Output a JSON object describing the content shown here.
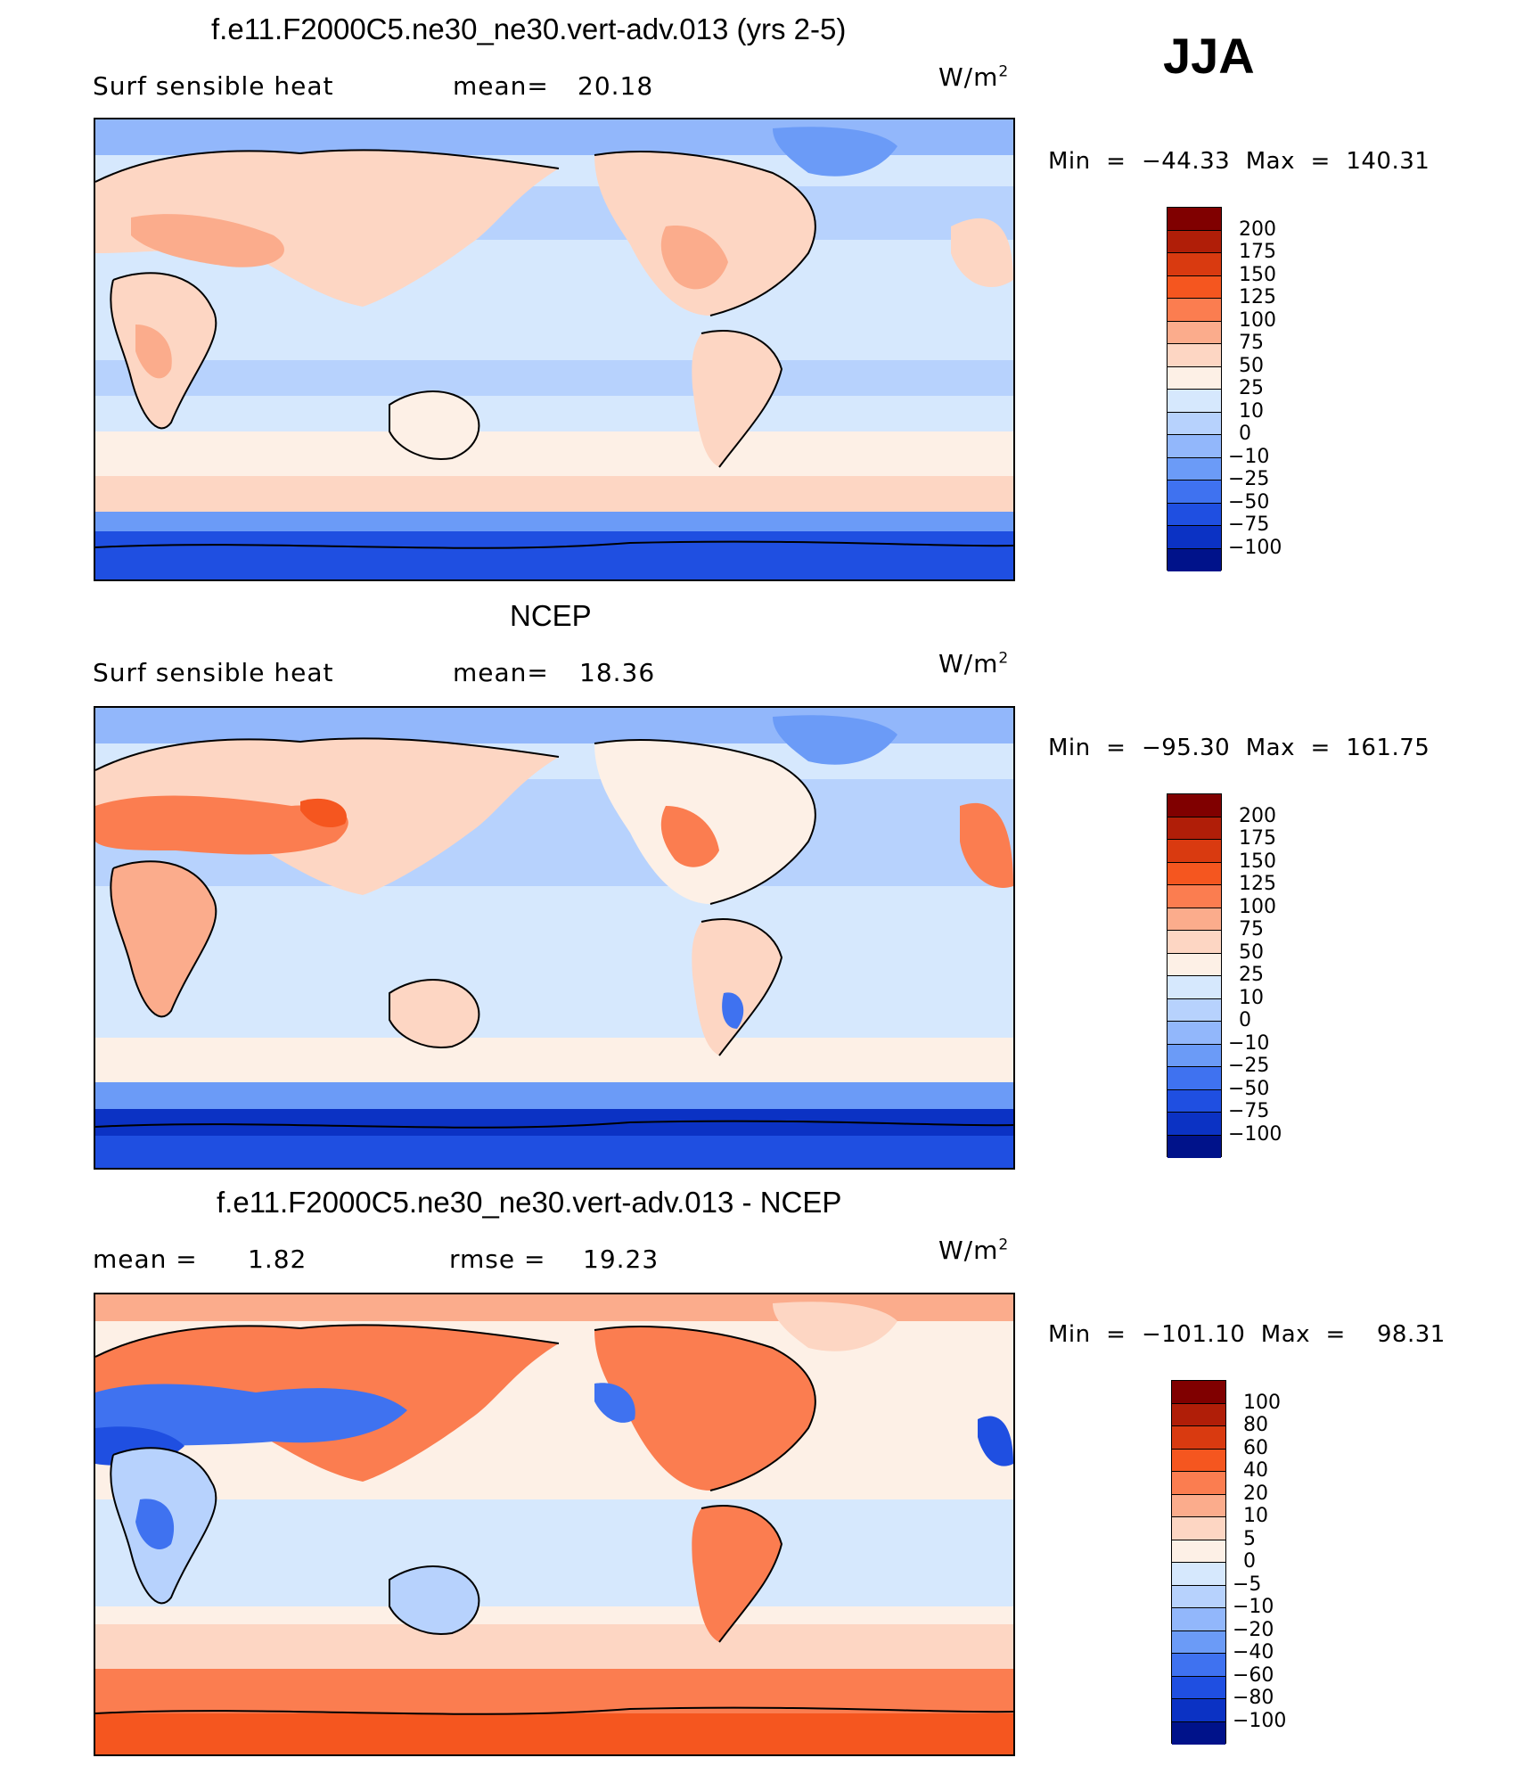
{
  "season": "JJA",
  "units": "W/m",
  "units_sup": "2",
  "panels": [
    {
      "title": "f.e11.F2000C5.ne30_ne30.vert-adv.013 (yrs 2-5)",
      "left_label": "Surf  sensible  heat",
      "stat_label": "mean=",
      "stat_value": "20.18",
      "minmax": "Min  =  −44.33  Max  =  140.31",
      "colorbar": {
        "colors": [
          "#800000",
          "#b01e08",
          "#d93a10",
          "#f5561f",
          "#fb7d50",
          "#fbac8c",
          "#fdd6c3",
          "#fdf0e6",
          "#d6e8fd",
          "#b7d2fd",
          "#92b7fb",
          "#6b9bf7",
          "#3f72f0",
          "#1f4fe1",
          "#0b32c4",
          "#00128a"
        ],
        "ticks": [
          "200",
          "175",
          "150",
          "125",
          "100",
          "75",
          "50",
          "25",
          "10",
          "0",
          "−10",
          "−25",
          "−50",
          "−75",
          "−100"
        ]
      }
    },
    {
      "title": "NCEP",
      "left_label": "Surf  sensible  heat",
      "stat_label": "mean=",
      "stat_value": "18.36",
      "minmax": "Min  =  −95.30  Max  =  161.75",
      "colorbar": {
        "colors": [
          "#800000",
          "#b01e08",
          "#d93a10",
          "#f5561f",
          "#fb7d50",
          "#fbac8c",
          "#fdd6c3",
          "#fdf0e6",
          "#d6e8fd",
          "#b7d2fd",
          "#92b7fb",
          "#6b9bf7",
          "#3f72f0",
          "#1f4fe1",
          "#0b32c4",
          "#00128a"
        ],
        "ticks": [
          "200",
          "175",
          "150",
          "125",
          "100",
          "75",
          "50",
          "25",
          "10",
          "0",
          "−10",
          "−25",
          "−50",
          "−75",
          "−100"
        ]
      }
    },
    {
      "title": "f.e11.F2000C5.ne30_ne30.vert-adv.013 - NCEP",
      "left_label": "mean =",
      "left_value": "1.82",
      "stat_label": "rmse =",
      "stat_value": "19.23",
      "minmax": "Min  =  −101.10  Max  =    98.31",
      "colorbar": {
        "colors": [
          "#800000",
          "#b01e08",
          "#d93a10",
          "#f5561f",
          "#fb7d50",
          "#fbac8c",
          "#fdd6c3",
          "#fdf0e6",
          "#d6e8fd",
          "#b7d2fd",
          "#92b7fb",
          "#6b9bf7",
          "#3f72f0",
          "#1f4fe1",
          "#0b32c4",
          "#00128a"
        ],
        "ticks": [
          "100",
          "80",
          "60",
          "40",
          "20",
          "10",
          "5",
          "0",
          "−5",
          "−10",
          "−20",
          "−40",
          "−60",
          "−80",
          "−100"
        ]
      }
    }
  ]
}
